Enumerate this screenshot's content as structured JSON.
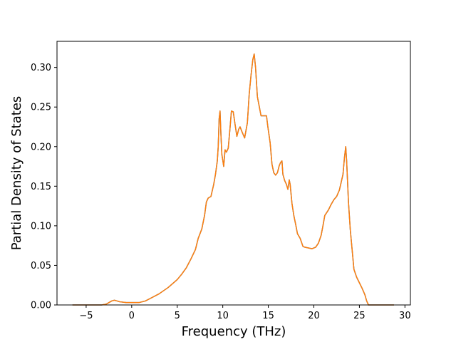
{
  "chart_data": {
    "type": "line",
    "title": "",
    "xlabel": "Frequency (THz)",
    "ylabel": "Partial Density of States",
    "xlim": [
      -8.2,
      30.6
    ],
    "ylim": [
      0.0,
      0.333
    ],
    "xticks": [
      -5,
      0,
      5,
      10,
      15,
      20,
      25,
      30
    ],
    "xtick_labels": [
      "−5",
      "0",
      "5",
      "10",
      "15",
      "20",
      "25",
      "30"
    ],
    "yticks": [
      0.0,
      0.05,
      0.1,
      0.15,
      0.2,
      0.25,
      0.3
    ],
    "ytick_labels": [
      "0.00",
      "0.05",
      "0.10",
      "0.15",
      "0.20",
      "0.25",
      "0.30"
    ],
    "grid": false,
    "series": [
      {
        "color": "#1f77b4",
        "points": [
          [
            -6.5,
            0.0
          ],
          [
            -3.3,
            0.0
          ],
          [
            -2.8,
            0.001
          ],
          [
            -2.5,
            0.003
          ],
          [
            -2.2,
            0.005
          ],
          [
            -1.9,
            0.006
          ],
          [
            -1.3,
            0.004
          ],
          [
            -0.6,
            0.003
          ],
          [
            0.0,
            0.003
          ],
          [
            0.8,
            0.003
          ],
          [
            1.5,
            0.005
          ],
          [
            2.0,
            0.008
          ],
          [
            3.0,
            0.014
          ],
          [
            4.0,
            0.022
          ],
          [
            5.0,
            0.032
          ],
          [
            5.5,
            0.039
          ],
          [
            6.0,
            0.047
          ],
          [
            6.5,
            0.058
          ],
          [
            7.0,
            0.07
          ],
          [
            7.3,
            0.084
          ],
          [
            7.7,
            0.096
          ],
          [
            8.0,
            0.113
          ],
          [
            8.2,
            0.13
          ],
          [
            8.4,
            0.135
          ],
          [
            8.7,
            0.137
          ],
          [
            9.0,
            0.152
          ],
          [
            9.2,
            0.165
          ],
          [
            9.4,
            0.182
          ],
          [
            9.5,
            0.2
          ],
          [
            9.6,
            0.235
          ],
          [
            9.7,
            0.245
          ],
          [
            9.8,
            0.215
          ],
          [
            9.9,
            0.19
          ],
          [
            10.0,
            0.183
          ],
          [
            10.1,
            0.175
          ],
          [
            10.25,
            0.196
          ],
          [
            10.4,
            0.193
          ],
          [
            10.6,
            0.198
          ],
          [
            10.8,
            0.224
          ],
          [
            10.95,
            0.245
          ],
          [
            11.15,
            0.244
          ],
          [
            11.35,
            0.228
          ],
          [
            11.55,
            0.213
          ],
          [
            11.75,
            0.222
          ],
          [
            11.9,
            0.225
          ],
          [
            12.1,
            0.219
          ],
          [
            12.4,
            0.211
          ],
          [
            12.7,
            0.23
          ],
          [
            12.9,
            0.266
          ],
          [
            13.1,
            0.29
          ],
          [
            13.3,
            0.31
          ],
          [
            13.45,
            0.317
          ],
          [
            13.6,
            0.3
          ],
          [
            13.8,
            0.263
          ],
          [
            14.2,
            0.239
          ],
          [
            14.8,
            0.239
          ],
          [
            14.95,
            0.225
          ],
          [
            15.2,
            0.205
          ],
          [
            15.4,
            0.178
          ],
          [
            15.6,
            0.167
          ],
          [
            15.8,
            0.164
          ],
          [
            16.0,
            0.167
          ],
          [
            16.2,
            0.176
          ],
          [
            16.35,
            0.18
          ],
          [
            16.5,
            0.182
          ],
          [
            16.6,
            0.165
          ],
          [
            16.8,
            0.157
          ],
          [
            17.0,
            0.152
          ],
          [
            17.15,
            0.146
          ],
          [
            17.3,
            0.158
          ],
          [
            17.4,
            0.152
          ],
          [
            17.6,
            0.128
          ],
          [
            17.8,
            0.113
          ],
          [
            18.0,
            0.102
          ],
          [
            18.2,
            0.09
          ],
          [
            18.5,
            0.084
          ],
          [
            18.8,
            0.074
          ],
          [
            19.0,
            0.073
          ],
          [
            19.4,
            0.072
          ],
          [
            19.8,
            0.071
          ],
          [
            20.2,
            0.073
          ],
          [
            20.5,
            0.078
          ],
          [
            20.8,
            0.088
          ],
          [
            21.0,
            0.1
          ],
          [
            21.2,
            0.113
          ],
          [
            21.6,
            0.12
          ],
          [
            21.9,
            0.127
          ],
          [
            22.2,
            0.133
          ],
          [
            22.5,
            0.137
          ],
          [
            22.8,
            0.145
          ],
          [
            23.0,
            0.155
          ],
          [
            23.2,
            0.165
          ],
          [
            23.35,
            0.185
          ],
          [
            23.5,
            0.2
          ],
          [
            23.6,
            0.182
          ],
          [
            23.8,
            0.13
          ],
          [
            24.0,
            0.095
          ],
          [
            24.2,
            0.07
          ],
          [
            24.4,
            0.045
          ],
          [
            24.7,
            0.035
          ],
          [
            25.0,
            0.028
          ],
          [
            25.3,
            0.021
          ],
          [
            25.6,
            0.013
          ],
          [
            25.8,
            0.005
          ],
          [
            26.0,
            0.0
          ],
          [
            28.8,
            0.0
          ]
        ]
      },
      {
        "color": "#ff7f0e",
        "points": [
          [
            -6.5,
            0.0
          ],
          [
            -3.3,
            0.0
          ],
          [
            -2.8,
            0.001
          ],
          [
            -2.5,
            0.003
          ],
          [
            -2.2,
            0.005
          ],
          [
            -1.9,
            0.006
          ],
          [
            -1.3,
            0.004
          ],
          [
            -0.6,
            0.003
          ],
          [
            0.0,
            0.003
          ],
          [
            0.8,
            0.003
          ],
          [
            1.5,
            0.005
          ],
          [
            2.0,
            0.008
          ],
          [
            3.0,
            0.014
          ],
          [
            4.0,
            0.022
          ],
          [
            5.0,
            0.032
          ],
          [
            5.5,
            0.039
          ],
          [
            6.0,
            0.047
          ],
          [
            6.5,
            0.058
          ],
          [
            7.0,
            0.07
          ],
          [
            7.3,
            0.084
          ],
          [
            7.7,
            0.096
          ],
          [
            8.0,
            0.113
          ],
          [
            8.2,
            0.13
          ],
          [
            8.4,
            0.135
          ],
          [
            8.7,
            0.137
          ],
          [
            9.0,
            0.152
          ],
          [
            9.2,
            0.165
          ],
          [
            9.4,
            0.182
          ],
          [
            9.5,
            0.2
          ],
          [
            9.6,
            0.235
          ],
          [
            9.7,
            0.245
          ],
          [
            9.8,
            0.215
          ],
          [
            9.9,
            0.19
          ],
          [
            10.0,
            0.183
          ],
          [
            10.1,
            0.175
          ],
          [
            10.25,
            0.196
          ],
          [
            10.4,
            0.193
          ],
          [
            10.6,
            0.198
          ],
          [
            10.8,
            0.224
          ],
          [
            10.95,
            0.245
          ],
          [
            11.15,
            0.244
          ],
          [
            11.35,
            0.228
          ],
          [
            11.55,
            0.213
          ],
          [
            11.75,
            0.222
          ],
          [
            11.9,
            0.225
          ],
          [
            12.1,
            0.219
          ],
          [
            12.4,
            0.211
          ],
          [
            12.7,
            0.23
          ],
          [
            12.9,
            0.266
          ],
          [
            13.1,
            0.29
          ],
          [
            13.3,
            0.31
          ],
          [
            13.45,
            0.317
          ],
          [
            13.6,
            0.3
          ],
          [
            13.8,
            0.263
          ],
          [
            14.2,
            0.239
          ],
          [
            14.8,
            0.239
          ],
          [
            14.95,
            0.225
          ],
          [
            15.2,
            0.205
          ],
          [
            15.4,
            0.178
          ],
          [
            15.6,
            0.167
          ],
          [
            15.8,
            0.164
          ],
          [
            16.0,
            0.167
          ],
          [
            16.2,
            0.176
          ],
          [
            16.35,
            0.18
          ],
          [
            16.5,
            0.182
          ],
          [
            16.6,
            0.165
          ],
          [
            16.8,
            0.157
          ],
          [
            17.0,
            0.152
          ],
          [
            17.15,
            0.146
          ],
          [
            17.3,
            0.158
          ],
          [
            17.4,
            0.152
          ],
          [
            17.6,
            0.128
          ],
          [
            17.8,
            0.113
          ],
          [
            18.0,
            0.102
          ],
          [
            18.2,
            0.09
          ],
          [
            18.5,
            0.084
          ],
          [
            18.8,
            0.074
          ],
          [
            19.0,
            0.073
          ],
          [
            19.4,
            0.072
          ],
          [
            19.8,
            0.071
          ],
          [
            20.2,
            0.073
          ],
          [
            20.5,
            0.078
          ],
          [
            20.8,
            0.088
          ],
          [
            21.0,
            0.1
          ],
          [
            21.2,
            0.113
          ],
          [
            21.6,
            0.12
          ],
          [
            21.9,
            0.127
          ],
          [
            22.2,
            0.133
          ],
          [
            22.5,
            0.137
          ],
          [
            22.8,
            0.145
          ],
          [
            23.0,
            0.155
          ],
          [
            23.2,
            0.165
          ],
          [
            23.35,
            0.185
          ],
          [
            23.5,
            0.2
          ],
          [
            23.6,
            0.182
          ],
          [
            23.8,
            0.13
          ],
          [
            24.0,
            0.095
          ],
          [
            24.2,
            0.07
          ],
          [
            24.4,
            0.045
          ],
          [
            24.7,
            0.035
          ],
          [
            25.0,
            0.028
          ],
          [
            25.3,
            0.021
          ],
          [
            25.6,
            0.013
          ],
          [
            25.8,
            0.005
          ],
          [
            26.0,
            0.0
          ],
          [
            28.8,
            0.0
          ]
        ]
      }
    ]
  }
}
